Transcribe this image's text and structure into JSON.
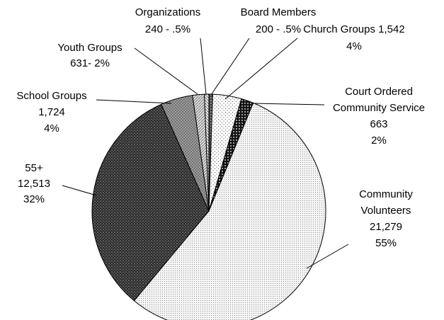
{
  "chart_data": {
    "type": "pie",
    "values": [
      200,
      1542,
      663,
      21279,
      12513,
      1724,
      631,
      240
    ],
    "labels": [
      [
        "Board Members",
        "200 - .5%"
      ],
      [
        "Church Groups 1,542",
        "4%"
      ],
      [
        "Court Ordered",
        "Community Service",
        "663",
        "2%"
      ],
      [
        "Community",
        "Volunteers",
        "21,279",
        "55%"
      ],
      [
        "55+",
        "12,513",
        "32%"
      ],
      [
        "School Groups",
        "1,724",
        "4%"
      ],
      [
        "Youth Groups",
        "631- 2%"
      ],
      [
        "Organizations",
        "240 - .5%"
      ]
    ],
    "start_angle": 90,
    "direction": "clockwise"
  }
}
